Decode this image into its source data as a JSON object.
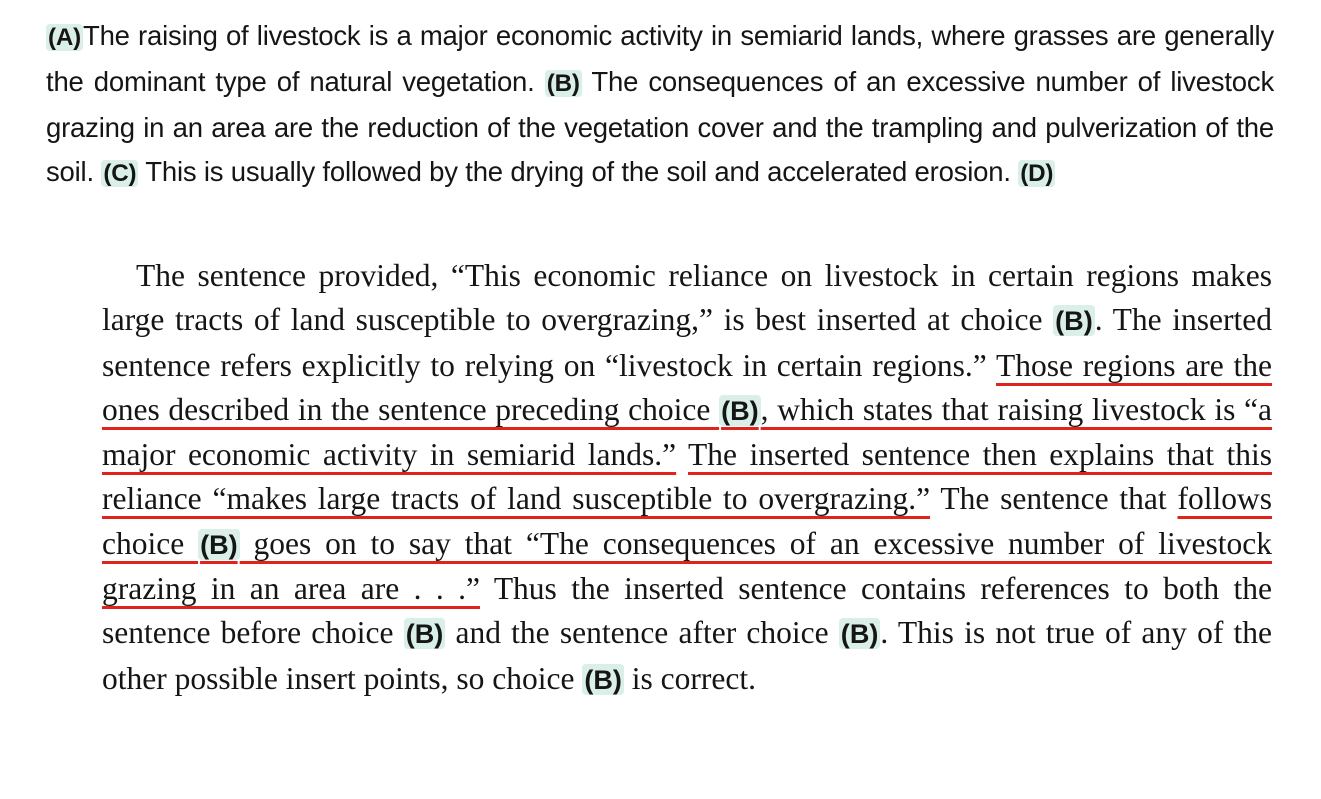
{
  "passage": {
    "labels": {
      "a": "(A)",
      "b": "(B)",
      "c": "(C)",
      "d": "(D)"
    },
    "s1": "The raising of livestock is a major economic activity in semiarid lands, where grasses are generally the dominant type of natural vegetation.",
    "s2": "The consequences of an excessive number of livestock grazing in an area are the reduction of the vegetation cover and the trampling and pulverization of the soil.",
    "s3": "This is usually followed by the drying of the soil and accelerated erosion."
  },
  "explanation": {
    "label_b": "(B)",
    "t1": "The sentence provided, “This economic reliance on livestock in certain regions makes large tracts of land susceptible to overgrazing,” is best inserted at choice ",
    "t2": ". The inserted sentence refers explicitly to relying on “livestock in certain regions.” ",
    "u1a": "Those regions are the ones described in the sentence preceding choice ",
    "u1b": ", which states that raising livestock is “a major economic activity in semiarid lands.”",
    "gap1": " ",
    "u2": "The inserted sentence then explains that this reliance “makes large tracts of land susceptible to overgrazing.”",
    "t3": " The sentence that ",
    "u3a": "follows choice ",
    "u3b": " goes on to say that “The consequences of an excessive number of livestock grazing in an area are . . .”",
    "t4": " Thus the inserted sentence contains references to both the sentence before choice ",
    "t5": " and the sentence after choice ",
    "t6": ". This is not true of any of the other possible insert points, so choice ",
    "t7": " is correct."
  }
}
